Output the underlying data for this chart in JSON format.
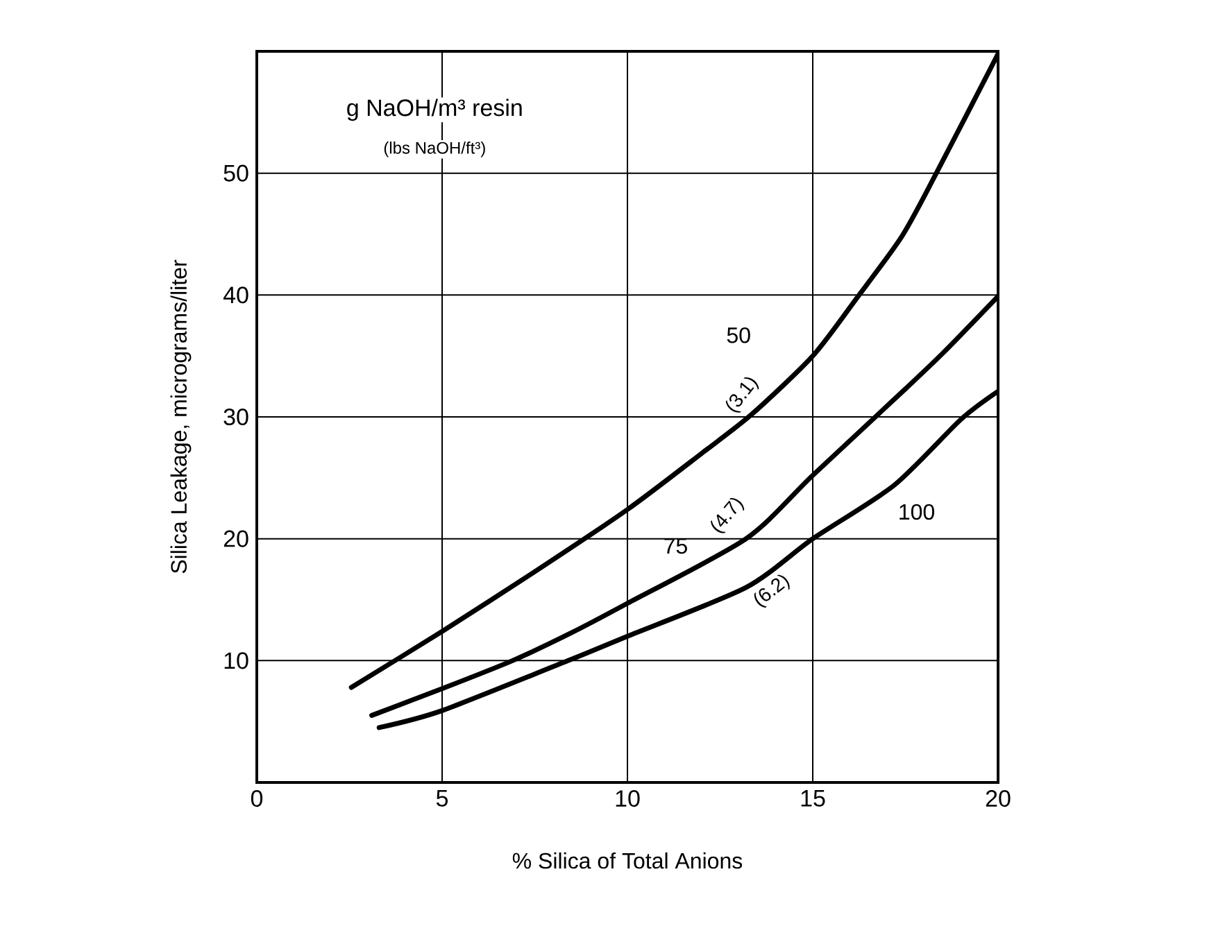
{
  "chart_data": {
    "type": "line",
    "xlabel": "% Silica of Total Anions",
    "ylabel": "Silica Leakage, micrograms/liter",
    "xlim": [
      0,
      20
    ],
    "ylim": [
      0,
      60
    ],
    "xticks": [
      0,
      5,
      10,
      15,
      20
    ],
    "yticks": [
      10,
      20,
      30,
      40,
      50
    ],
    "grid": true,
    "marker": "none",
    "line_style": "solid",
    "series": [
      {
        "name": "50",
        "color": "#000000",
        "x": [
          2.55,
          5.0,
          7.5,
          10.0,
          12.0,
          13.35,
          15.0,
          16.2,
          17.4,
          18.3,
          20.0
        ],
        "values": [
          7.8,
          12.4,
          17.3,
          22.4,
          27.0,
          30.2,
          35.0,
          39.8,
          44.8,
          49.8,
          59.8
        ]
      },
      {
        "name": "75",
        "color": "#000000",
        "x": [
          3.1,
          5.0,
          6.9,
          8.5,
          10.0,
          13.2,
          15.0,
          17.5,
          18.5,
          20.0
        ],
        "values": [
          5.5,
          7.7,
          10.0,
          12.3,
          14.7,
          20.0,
          25.2,
          32.3,
          35.2,
          39.9
        ]
      },
      {
        "name": "100",
        "color": "#000000",
        "x": [
          3.3,
          5.0,
          8.4,
          10.0,
          13.2,
          15.0,
          17.2,
          19.0,
          20.0
        ],
        "values": [
          4.5,
          5.9,
          10.0,
          12.0,
          16.0,
          20.0,
          24.4,
          29.8,
          32.1
        ]
      }
    ],
    "annotations": [
      "g NaOH/m³ resin",
      "(lbs NaOH/ft³)",
      "(3.1)",
      "(4.7)",
      "(6.2)"
    ]
  }
}
